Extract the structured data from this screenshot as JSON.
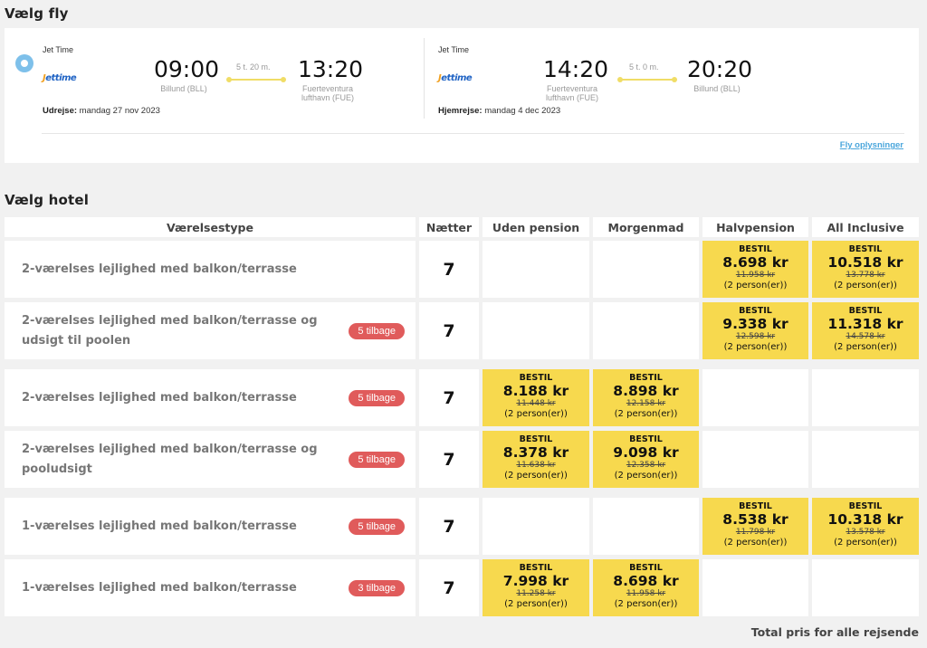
{
  "flight_section": {
    "title": "Vælg fly",
    "outbound": {
      "airline": "Jet Time",
      "logo_text": "Jettime",
      "dep_time": "09:00",
      "dep_airport": "Billund (BLL)",
      "duration": "5 t. 20 m.",
      "arr_time": "13:20",
      "arr_airport_line1": "Fuerteventura",
      "arr_airport_line2": "lufthavn (FUE)",
      "date_label": "Udrejse:",
      "date": "mandag 27 nov 2023"
    },
    "return": {
      "airline": "Jet Time",
      "logo_text": "Jettime",
      "dep_time": "14:20",
      "dep_airport_line1": "Fuerteventura",
      "dep_airport_line2": "lufthavn (FUE)",
      "duration": "5 t. 0 m.",
      "arr_time": "20:20",
      "arr_airport": "Billund (BLL)",
      "date_label": "Hjemrejse:",
      "date": "mandag 4 dec 2023"
    },
    "info_link": "Fly oplysninger"
  },
  "hotel_section": {
    "title": "Vælg hotel",
    "headers": [
      "Værelsestype",
      "Nætter",
      "Uden pension",
      "Morgenmad",
      "Halvpension",
      "All Inclusive"
    ],
    "cta_label": "BESTIL",
    "persons_label": "(2 person(er))",
    "rows": [
      {
        "room": "2-værelses lejlighed med balkon/terrasse",
        "badge": "",
        "nights": "7",
        "prices": [
          null,
          null,
          {
            "price": "8.698 kr",
            "old": "11.958 kr"
          },
          {
            "price": "10.518 kr",
            "old": "13.778 kr"
          }
        ]
      },
      {
        "room": "2-værelses lejlighed med balkon/terrasse og udsigt til poolen",
        "badge": "5 tilbage",
        "nights": "7",
        "prices": [
          null,
          null,
          {
            "price": "9.338 kr",
            "old": "12.598 kr"
          },
          {
            "price": "11.318 kr",
            "old": "14.578 kr"
          }
        ]
      },
      {
        "room": "2-værelses lejlighed med balkon/terrasse",
        "badge": "5 tilbage",
        "nights": "7",
        "prices": [
          {
            "price": "8.188 kr",
            "old": "11.448 kr"
          },
          {
            "price": "8.898 kr",
            "old": "12.158 kr"
          },
          null,
          null
        ]
      },
      {
        "room": "2-værelses lejlighed med balkon/terrasse og pooludsigt",
        "badge": "5 tilbage",
        "nights": "7",
        "prices": [
          {
            "price": "8.378 kr",
            "old": "11.638 kr"
          },
          {
            "price": "9.098 kr",
            "old": "12.358 kr"
          },
          null,
          null
        ]
      },
      {
        "room": "1-værelses lejlighed med balkon/terrasse",
        "badge": "5 tilbage",
        "nights": "7",
        "prices": [
          null,
          null,
          {
            "price": "8.538 kr",
            "old": "11.798 kr"
          },
          {
            "price": "10.318 kr",
            "old": "13.578 kr"
          }
        ]
      },
      {
        "room": "1-værelses lejlighed med balkon/terrasse",
        "badge": "3 tilbage",
        "nights": "7",
        "prices": [
          {
            "price": "7.998 kr",
            "old": "11.258 kr"
          },
          {
            "price": "8.698 kr",
            "old": "11.958 kr"
          },
          null,
          null
        ]
      }
    ]
  },
  "footer": {
    "total_label": "Total pris for alle rejsende"
  },
  "colors": {
    "price_bg": "#f7d94e",
    "badge_bg": "#e05b5b",
    "link": "#4aa6dc",
    "radio": "#7ec0ea"
  }
}
